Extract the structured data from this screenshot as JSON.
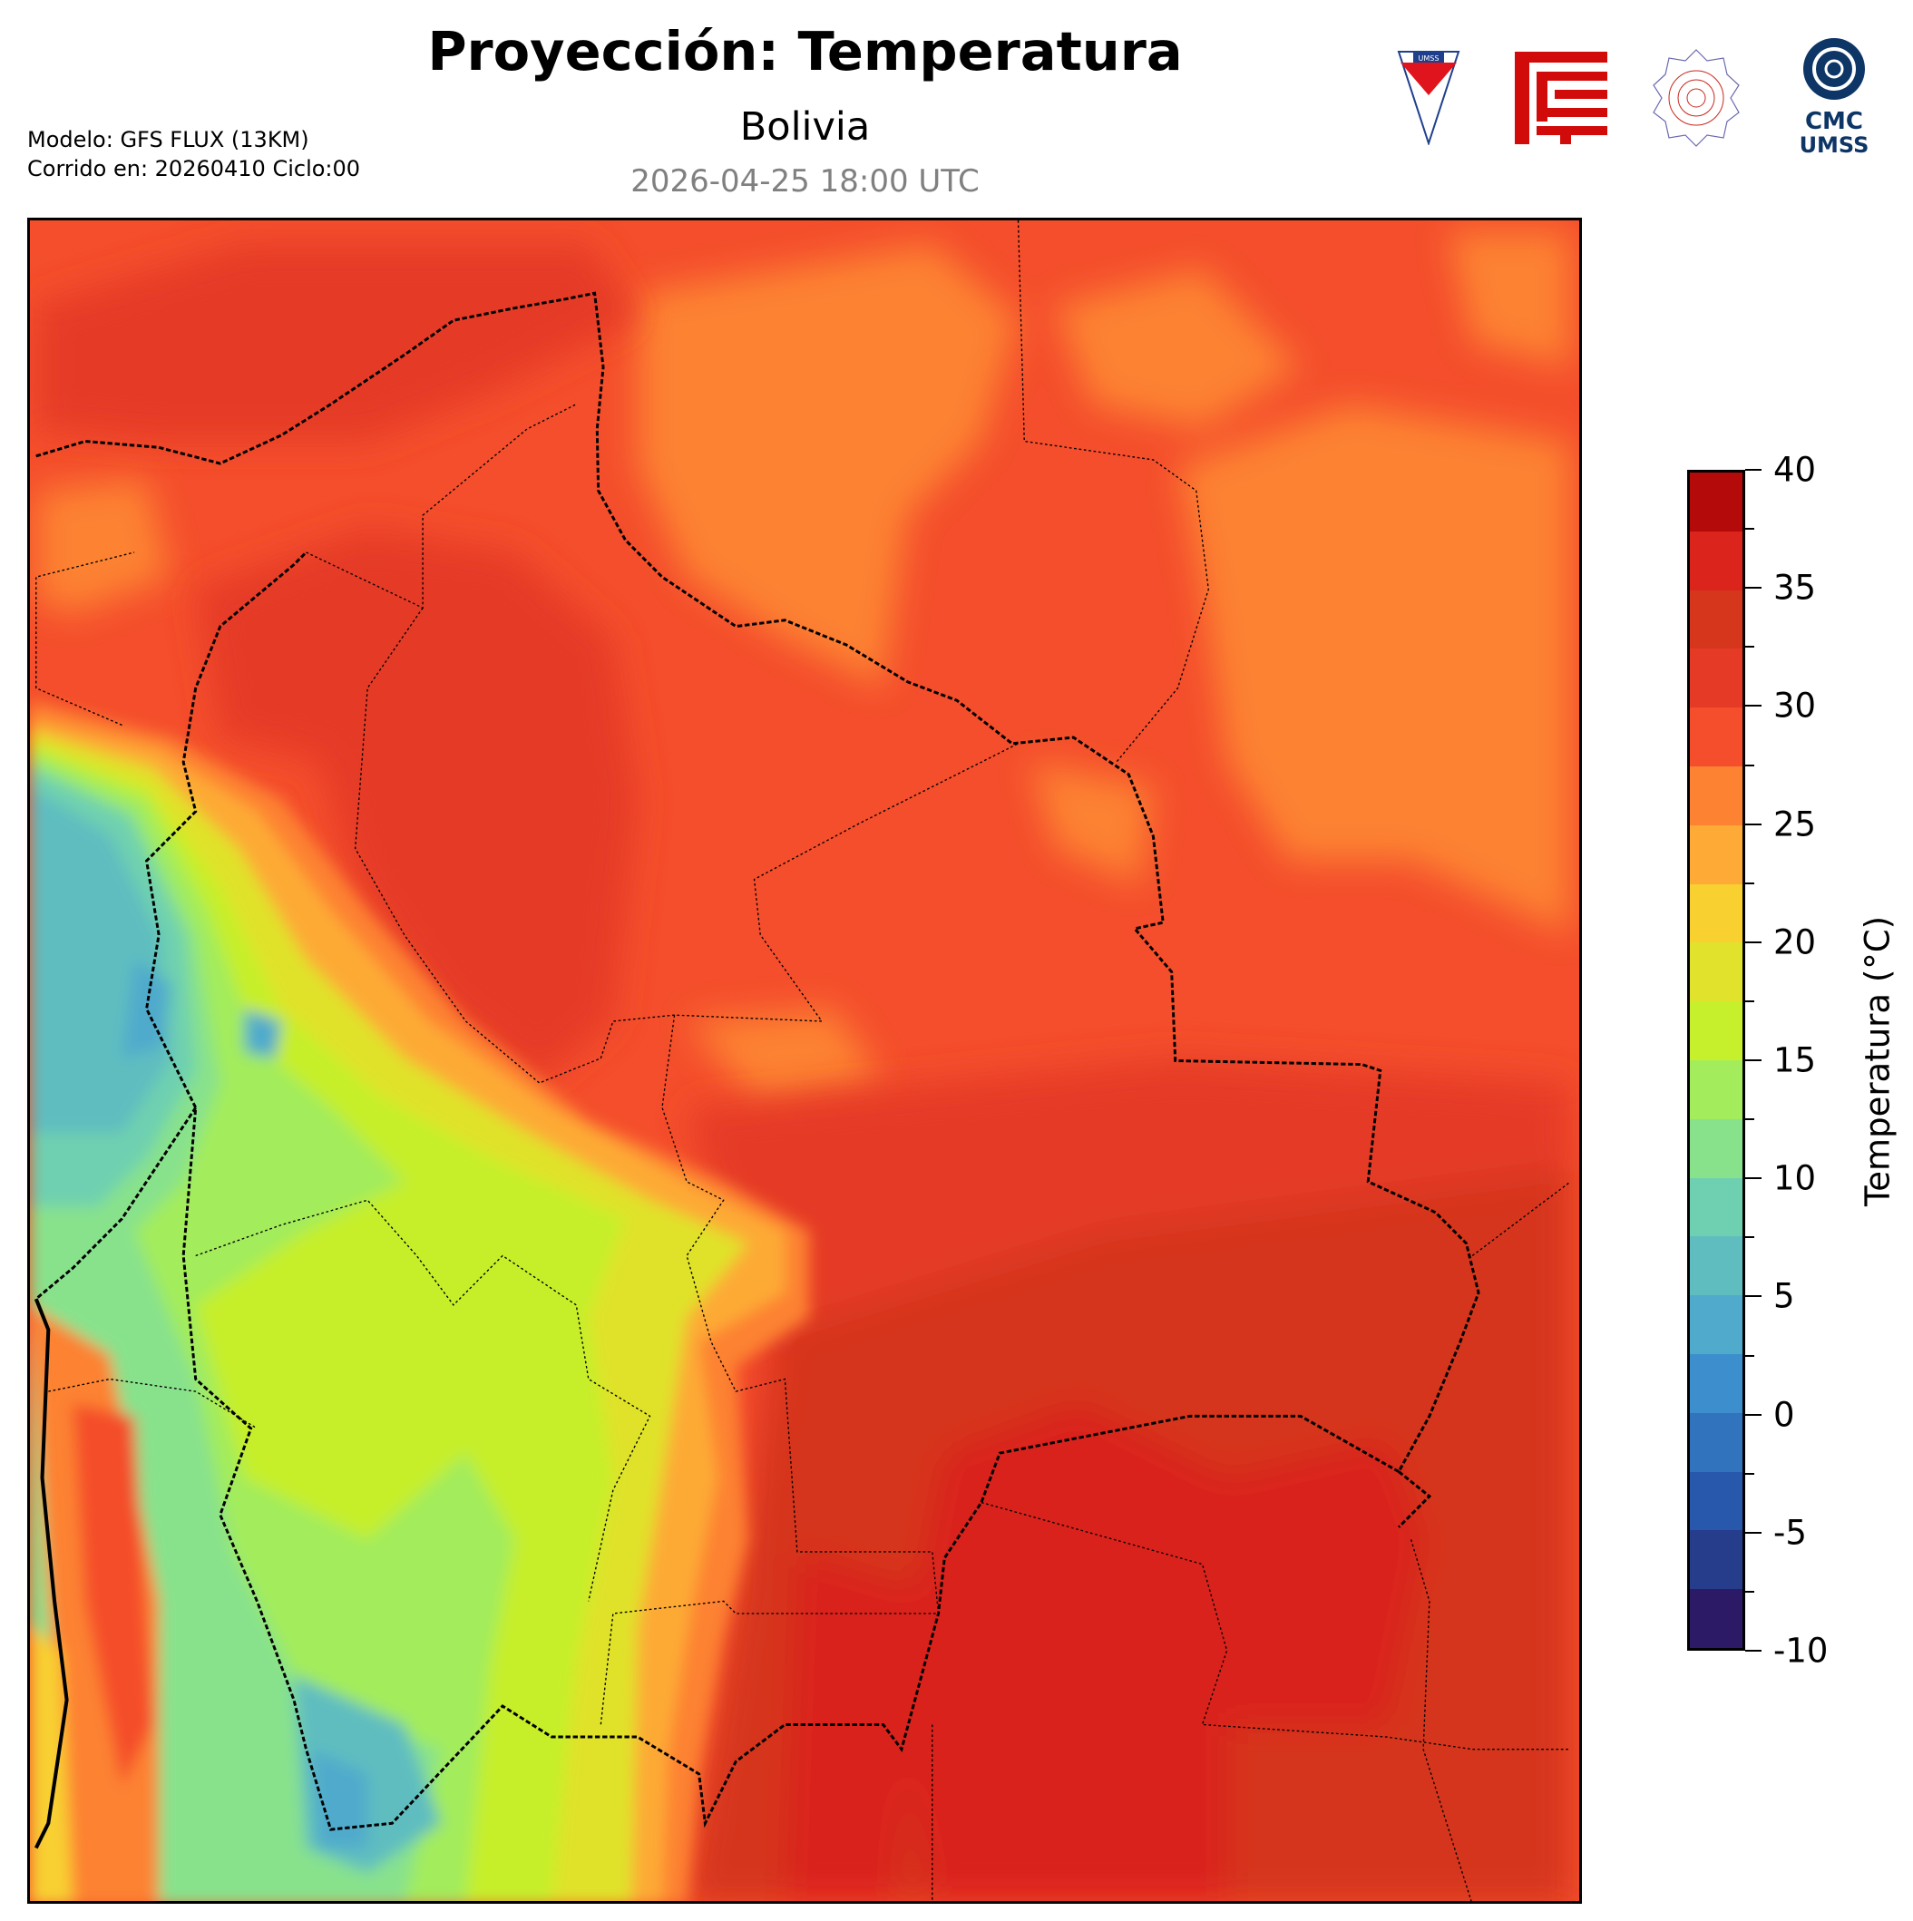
{
  "header": {
    "title": "Proyección: Temperatura",
    "subtitle": "Bolivia",
    "valid_time": "2026-04-25 18:00 UTC",
    "model": "Modelo: GFS FLUX (13KM)",
    "run": "Corrido en: 20260410 Ciclo:00"
  },
  "logos": [
    {
      "name": "umss-shield",
      "text": "UMSS"
    },
    {
      "name": "fcyt-logo",
      "text": ""
    },
    {
      "name": "departamento-de-fisica-seal",
      "text": "DEPARTAMENTO DE FISICA"
    },
    {
      "name": "cmc-umss-logo",
      "text": "CMC UMSS"
    }
  ],
  "chart_data": {
    "type": "heatmap",
    "title": "Proyección: Temperatura",
    "subtitle": "Bolivia",
    "variable": "Temperatura (°C)",
    "colorbar": {
      "label": "Temperatura (°C)",
      "range": [
        -10,
        40
      ],
      "ticks": [
        "40",
        "35",
        "30",
        "25",
        "20",
        "15",
        "10",
        "5",
        "0",
        "-5",
        "-10"
      ],
      "levels": [
        -10,
        -7.5,
        -5,
        -2.5,
        0,
        2.5,
        5,
        7.5,
        10,
        12.5,
        15,
        17.5,
        20,
        22.5,
        25,
        27.5,
        30,
        32.5,
        35,
        37.5,
        40
      ],
      "colors": [
        "#2c1a66",
        "#263d8c",
        "#2858ac",
        "#3173bc",
        "#3c8fcc",
        "#50aacc",
        "#5fbdc0",
        "#6ed0b0",
        "#88e28c",
        "#a3ec5c",
        "#c6ef2c",
        "#e0e22c",
        "#f8d030",
        "#fdaa36",
        "#fd8232",
        "#f44e2c",
        "#e53a26",
        "#d5361c",
        "#da241c",
        "#b40a0a"
      ]
    },
    "summary": {
      "west_altiplano": "5–20 °C",
      "lowlands": "27.5–37.5 °C"
    }
  }
}
